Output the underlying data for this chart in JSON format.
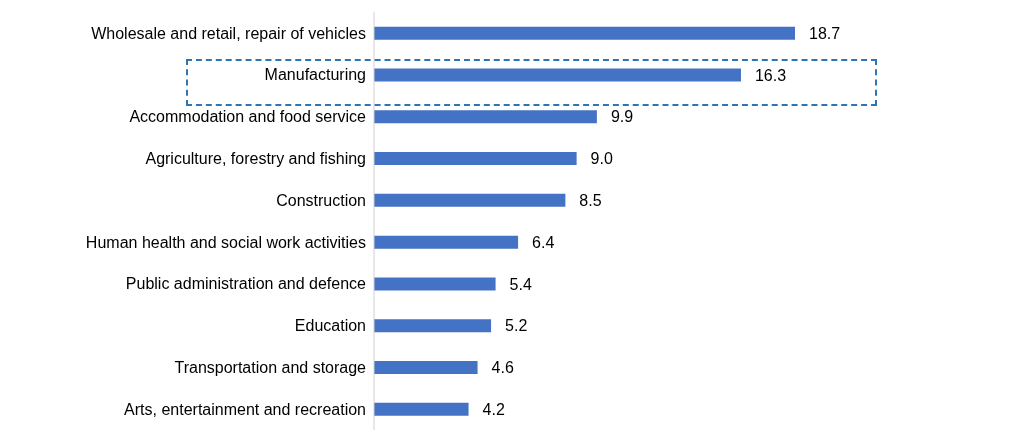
{
  "chart_data": {
    "type": "bar",
    "orientation": "horizontal",
    "color": "#4472c4",
    "value_labels": [
      "18.7",
      "16.3",
      "9.9",
      "9.0",
      "8.5",
      "6.4",
      "5.4",
      "5.2",
      "4.6",
      "4.2"
    ],
    "categories": [
      "Wholesale and retail, repair of vehicles",
      "Manufacturing",
      "Accommodation and food service",
      "Agriculture, forestry and fishing",
      "Construction",
      "Human health and social work activities",
      "Public administration and defence",
      "Education",
      "Transportation and storage",
      "Arts, entertainment and recreation"
    ],
    "values": [
      18.7,
      16.3,
      9.9,
      9.0,
      8.5,
      6.4,
      5.4,
      5.2,
      4.6,
      4.2
    ]
  }
}
